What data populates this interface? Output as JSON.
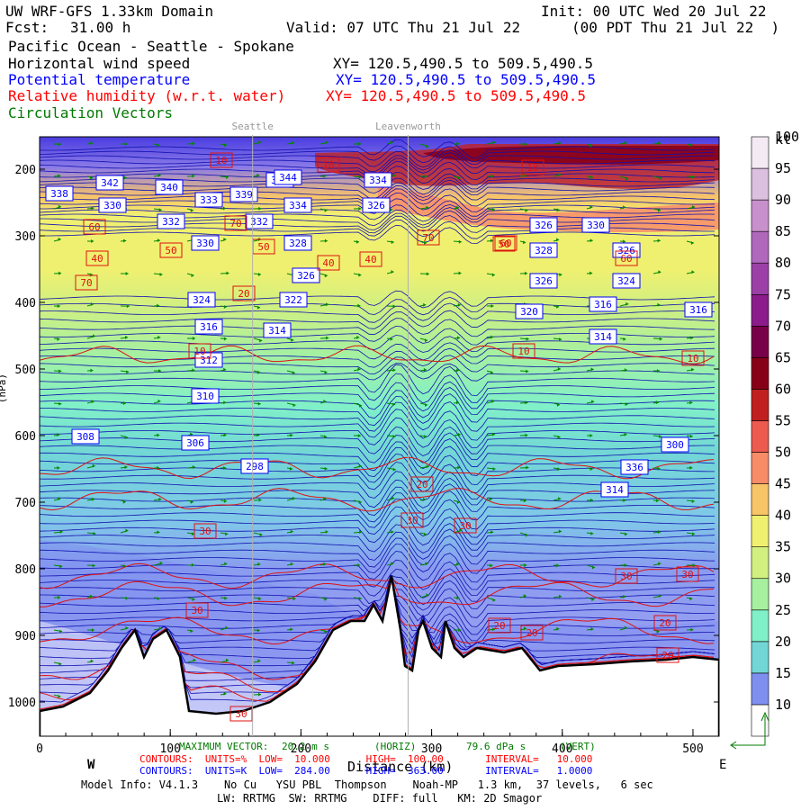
{
  "header": {
    "model_title": "UW WRF-GFS 1.33km Domain",
    "init": "Init: 00 UTC Wed 20 Jul 22",
    "fcst_label": "Fcst:",
    "fcst_value": "31.00 h",
    "valid": "Valid: 07 UTC Thu 21 Jul 22",
    "local": "(00 PDT Thu 21 Jul 22  )",
    "region": "Pacific Ocean - Seattle - Spokane",
    "field1": "Horizontal wind speed",
    "field1_xy": "XY= 120.5,490.5 to 509.5,490.5",
    "field2": "Potential temperature",
    "field2_xy": "XY= 120.5,490.5 to 509.5,490.5",
    "field3": "Relative humidity (w.r.t. water)",
    "field3_xy": "XY= 120.5,490.5 to 509.5,490.5",
    "field4": "Circulation Vectors",
    "colors": {
      "black": "#000000",
      "blue": "#0000ff",
      "red": "#ff0000",
      "green": "#007a00"
    }
  },
  "chart_data": {
    "type": "heatmap",
    "description_fields": [
      "wind speed (filled, kt)",
      "potential temperature (blue contours, K)",
      "relative humidity (red contours, %)"
    ],
    "x_ticks": [
      0,
      100,
      200,
      300,
      400,
      500
    ],
    "xlim": [
      0,
      520
    ],
    "xlabel": "Distance (km)",
    "x_direction_labels": {
      "left": "W",
      "right": "E"
    },
    "y_ticks": [
      200,
      300,
      400,
      500,
      600,
      700,
      800,
      900,
      1000
    ],
    "ylim": [
      1050,
      150
    ],
    "ylabel": "(hPa)",
    "reference_locations": [
      {
        "name": "Seattle",
        "x": 163
      },
      {
        "name": "Leavenworth",
        "x": 282
      }
    ],
    "colorbar": {
      "unit": "kt",
      "levels": [
        10,
        15,
        20,
        25,
        30,
        35,
        40,
        45,
        50,
        55,
        60,
        65,
        70,
        75,
        80,
        85,
        90,
        95,
        100
      ],
      "colors": [
        "#ffffff",
        "#7f8ff0",
        "#72d6d6",
        "#80f0c8",
        "#a6f0a0",
        "#d2f080",
        "#f0f070",
        "#f8c468",
        "#f88c68",
        "#ec5a50",
        "#c02020",
        "#880018",
        "#780048",
        "#8c1c8c",
        "#9c40a8",
        "#b068bc",
        "#c890cc",
        "#dcc0e0",
        "#f4eaf4"
      ]
    },
    "theta_labels": [
      338,
      342,
      340,
      333,
      339,
      344,
      344,
      334,
      330,
      332,
      332,
      334,
      326,
      326,
      330,
      330,
      328,
      328,
      326,
      326,
      326,
      324,
      324,
      322,
      320,
      316,
      316,
      316,
      314,
      314,
      312,
      310,
      308,
      306,
      300,
      298,
      336,
      314
    ],
    "rh_labels": [
      10,
      10,
      10,
      10,
      10,
      10,
      20,
      20,
      20,
      20,
      20,
      20,
      30,
      30,
      30,
      30,
      30,
      30,
      30,
      40,
      40,
      40,
      50,
      50,
      50,
      60,
      60,
      60,
      70,
      70,
      70
    ],
    "notes": {
      "max_vector_label": "MAXIMUM VECTOR:",
      "max_vector_value": "20.2 m s",
      "max_vector_unit": "(HORIZ)",
      "vert_value": "79.6 dPa s",
      "vert_unit": "(VERT)",
      "rh_contours": "CONTOURS:  UNITS=%  LOW=  10.000      HIGH=  100.00       INTERVAL=   10.000",
      "th_contours": "CONTOURS:  UNITS=K  LOW=  284.00      HIGH=  363.00       INTERVAL=   1.0000"
    },
    "footer": {
      "line1": "Model Info: V4.1.3    No Cu   YSU PBL  Thompson    Noah-MP   1.3 km,  37 levels,   6 sec",
      "line2": "LW: RRTMG  SW: RRTMG    DIFF: full   KM: 2D Smagor"
    }
  }
}
